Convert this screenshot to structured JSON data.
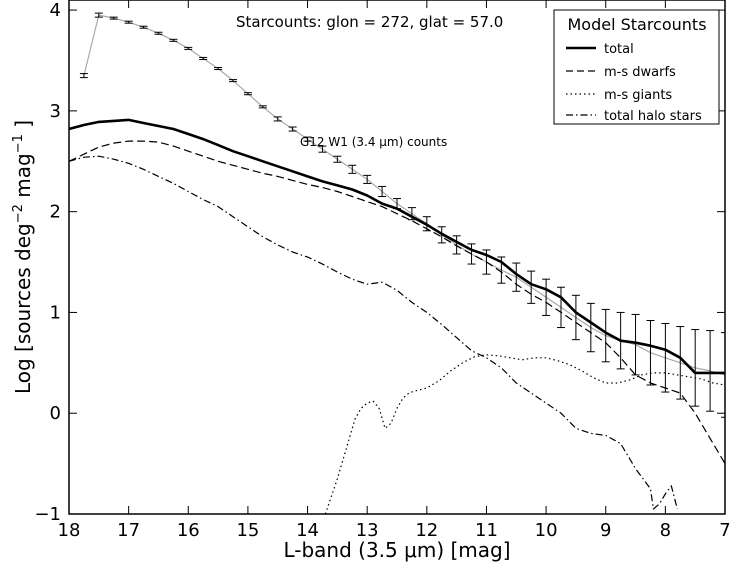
{
  "chart_data": {
    "type": "line",
    "title": "",
    "annotation_top": "Starcounts: glon = 272,  glat = 57.0",
    "annotation_series": "G12 W1 (3.4 μm) counts",
    "xlabel": "L-band (3.5 μm) [mag]",
    "ylabel_parts": {
      "main": "Log [sources deg",
      "sup1": "−2",
      "mid": " mag",
      "sup2": "−1",
      "end": " ]"
    },
    "xlim": [
      18,
      7
    ],
    "ylim": [
      -1,
      4.1
    ],
    "x_ticks": [
      18,
      17,
      16,
      15,
      14,
      13,
      12,
      11,
      10,
      9,
      8,
      7
    ],
    "y_ticks": [
      -1,
      0,
      1,
      2,
      3,
      4
    ],
    "grid": false,
    "legend": {
      "title": "Model Starcounts",
      "position": "top-right",
      "entries": [
        "total",
        "m-s dwarfs",
        "m-s giants",
        "total halo stars"
      ]
    },
    "series": [
      {
        "name": "G12 W1 (3.4 μm) counts",
        "color": "#aaaaaa",
        "style": "solid-with-errorbars",
        "x": [
          17.75,
          17.5,
          17.25,
          17.0,
          16.75,
          16.5,
          16.25,
          16.0,
          15.75,
          15.5,
          15.25,
          15.0,
          14.75,
          14.5,
          14.25,
          14.0,
          13.75,
          13.5,
          13.25,
          13.0,
          12.75,
          12.5,
          12.25,
          12.0,
          11.75,
          11.5,
          11.25,
          11.0,
          10.75,
          10.5,
          10.25,
          10.0,
          9.75,
          9.5,
          9.25,
          9.0,
          8.75,
          8.5,
          8.25,
          8.0,
          7.75,
          7.5,
          7.25,
          7.0
        ],
        "y": [
          3.35,
          3.95,
          3.92,
          3.88,
          3.83,
          3.77,
          3.7,
          3.62,
          3.52,
          3.42,
          3.3,
          3.17,
          3.04,
          2.92,
          2.82,
          2.72,
          2.62,
          2.52,
          2.42,
          2.32,
          2.2,
          2.08,
          1.98,
          1.88,
          1.77,
          1.67,
          1.58,
          1.5,
          1.42,
          1.35,
          1.25,
          1.15,
          1.05,
          0.95,
          0.85,
          0.77,
          0.72,
          0.68,
          0.6,
          0.55,
          0.5,
          0.45,
          0.42,
          0.38
        ],
        "err": [
          0.02,
          0.02,
          0.01,
          0.01,
          0.01,
          0.01,
          0.01,
          0.01,
          0.01,
          0.01,
          0.01,
          0.01,
          0.01,
          0.02,
          0.02,
          0.02,
          0.03,
          0.03,
          0.04,
          0.04,
          0.05,
          0.05,
          0.06,
          0.07,
          0.08,
          0.09,
          0.1,
          0.12,
          0.13,
          0.14,
          0.16,
          0.18,
          0.2,
          0.22,
          0.24,
          0.26,
          0.28,
          0.3,
          0.32,
          0.34,
          0.36,
          0.38,
          0.4,
          0.42
        ]
      },
      {
        "name": "total",
        "color": "#000000",
        "style": "solid",
        "x": [
          18.0,
          17.75,
          17.5,
          17.25,
          17.0,
          16.75,
          16.5,
          16.25,
          16.0,
          15.75,
          15.5,
          15.25,
          15.0,
          14.75,
          14.5,
          14.25,
          14.0,
          13.75,
          13.5,
          13.25,
          13.0,
          12.75,
          12.5,
          12.25,
          12.0,
          11.75,
          11.5,
          11.25,
          11.0,
          10.75,
          10.5,
          10.25,
          10.0,
          9.75,
          9.5,
          9.25,
          9.0,
          8.75,
          8.5,
          8.25,
          8.0,
          7.75,
          7.5,
          7.25,
          7.0
        ],
        "y": [
          2.82,
          2.86,
          2.89,
          2.9,
          2.91,
          2.88,
          2.85,
          2.82,
          2.77,
          2.72,
          2.66,
          2.6,
          2.55,
          2.5,
          2.45,
          2.4,
          2.35,
          2.3,
          2.26,
          2.22,
          2.16,
          2.08,
          2.03,
          1.95,
          1.87,
          1.78,
          1.7,
          1.62,
          1.57,
          1.5,
          1.38,
          1.28,
          1.23,
          1.15,
          1.0,
          0.9,
          0.8,
          0.72,
          0.7,
          0.67,
          0.63,
          0.55,
          0.4,
          0.4,
          0.4
        ]
      },
      {
        "name": "m-s dwarfs",
        "color": "#000000",
        "style": "dashed",
        "x": [
          18.0,
          17.75,
          17.5,
          17.25,
          17.0,
          16.75,
          16.5,
          16.25,
          16.0,
          15.75,
          15.5,
          15.25,
          15.0,
          14.75,
          14.5,
          14.25,
          14.0,
          13.75,
          13.5,
          13.25,
          13.0,
          12.75,
          12.5,
          12.25,
          12.0,
          11.75,
          11.5,
          11.25,
          11.0,
          10.75,
          10.5,
          10.25,
          10.0,
          9.75,
          9.5,
          9.25,
          9.0,
          8.75,
          8.5,
          8.25,
          8.0,
          7.75,
          7.5,
          7.25,
          7.0
        ],
        "y": [
          2.5,
          2.57,
          2.64,
          2.68,
          2.7,
          2.7,
          2.69,
          2.65,
          2.6,
          2.55,
          2.5,
          2.46,
          2.42,
          2.38,
          2.35,
          2.31,
          2.27,
          2.24,
          2.2,
          2.15,
          2.1,
          2.05,
          1.98,
          1.91,
          1.83,
          1.75,
          1.66,
          1.58,
          1.5,
          1.4,
          1.28,
          1.18,
          1.1,
          1.0,
          0.9,
          0.8,
          0.7,
          0.55,
          0.38,
          0.3,
          0.25,
          0.2,
          0.0,
          -0.25,
          -0.5
        ]
      },
      {
        "name": "m-s giants",
        "color": "#000000",
        "style": "dotted",
        "x": [
          13.7,
          13.5,
          13.3,
          13.2,
          13.1,
          13.0,
          12.9,
          12.8,
          12.7,
          12.6,
          12.5,
          12.4,
          12.3,
          12.2,
          12.0,
          11.8,
          11.6,
          11.4,
          11.2,
          11.0,
          10.8,
          10.6,
          10.4,
          10.2,
          10.0,
          9.8,
          9.6,
          9.4,
          9.2,
          9.0,
          8.8,
          8.6,
          8.4,
          8.2,
          8.0,
          7.8,
          7.6,
          7.4,
          7.2,
          7.0
        ],
        "y": [
          -1.0,
          -0.65,
          -0.25,
          -0.05,
          0.05,
          0.1,
          0.12,
          0.05,
          -0.15,
          -0.1,
          0.05,
          0.15,
          0.2,
          0.22,
          0.25,
          0.32,
          0.42,
          0.5,
          0.56,
          0.58,
          0.57,
          0.55,
          0.53,
          0.55,
          0.55,
          0.52,
          0.48,
          0.42,
          0.35,
          0.3,
          0.3,
          0.33,
          0.38,
          0.4,
          0.4,
          0.38,
          0.36,
          0.34,
          0.3,
          0.28
        ]
      },
      {
        "name": "total halo stars",
        "color": "#000000",
        "style": "dashdot",
        "x": [
          18.0,
          17.75,
          17.5,
          17.25,
          17.0,
          16.75,
          16.5,
          16.25,
          16.0,
          15.75,
          15.5,
          15.25,
          15.0,
          14.75,
          14.5,
          14.25,
          14.0,
          13.75,
          13.5,
          13.25,
          13.0,
          12.75,
          12.5,
          12.25,
          12.0,
          11.75,
          11.5,
          11.25,
          11.0,
          10.75,
          10.5,
          10.25,
          10.0,
          9.75,
          9.5,
          9.25,
          9.0,
          8.75,
          8.5,
          8.25,
          8.2,
          8.1,
          8.0,
          7.9,
          7.8
        ],
        "y": [
          2.5,
          2.54,
          2.55,
          2.52,
          2.48,
          2.42,
          2.35,
          2.28,
          2.2,
          2.12,
          2.05,
          1.95,
          1.85,
          1.75,
          1.67,
          1.6,
          1.55,
          1.48,
          1.4,
          1.33,
          1.28,
          1.3,
          1.22,
          1.1,
          1.0,
          0.88,
          0.75,
          0.62,
          0.55,
          0.45,
          0.3,
          0.2,
          0.1,
          0.0,
          -0.15,
          -0.2,
          -0.22,
          -0.3,
          -0.55,
          -0.75,
          -0.95,
          -0.9,
          -0.8,
          -0.72,
          -0.95
        ]
      }
    ]
  }
}
